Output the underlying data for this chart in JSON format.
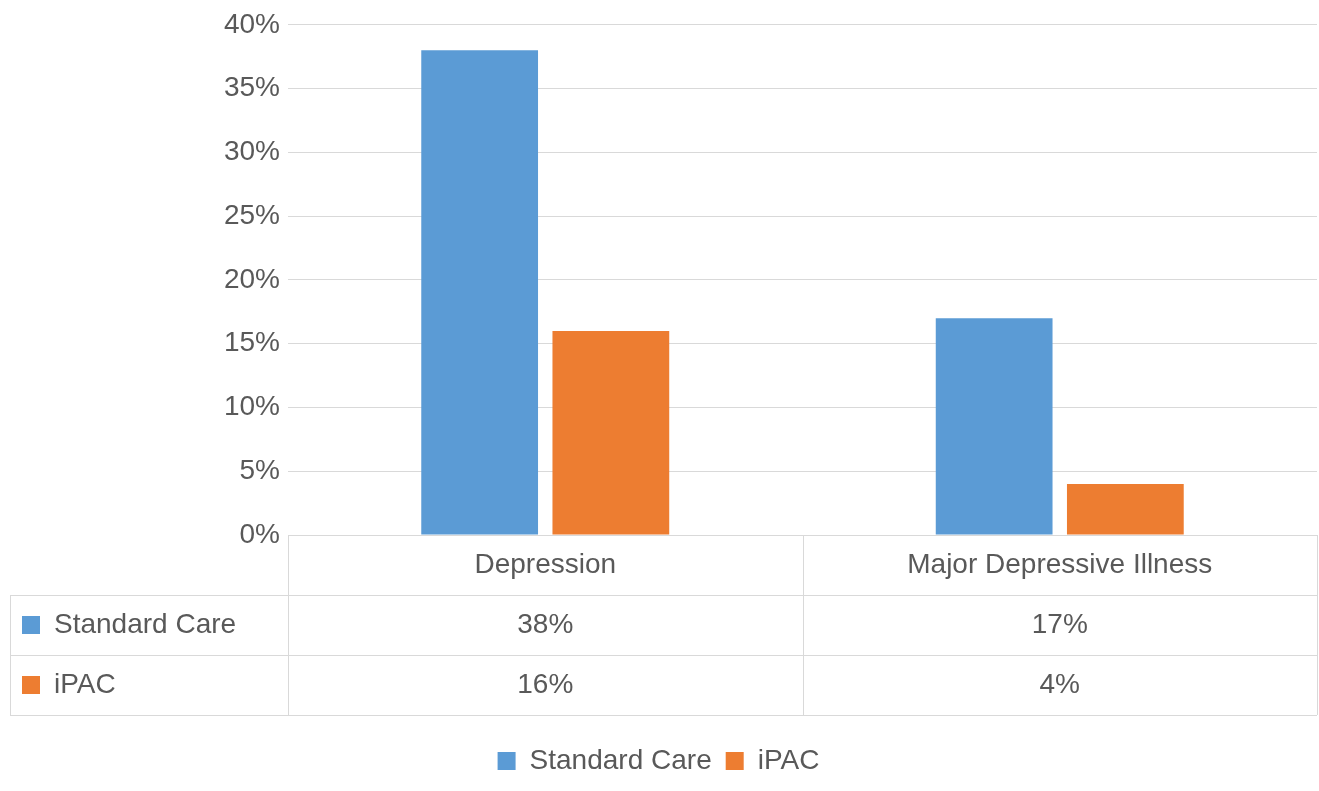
{
  "chart_data": {
    "type": "bar",
    "categories": [
      "Depression",
      "Major Depressive Illness"
    ],
    "series": [
      {
        "name": "Standard Care",
        "color": "#5b9bd5",
        "values": [
          38,
          17
        ],
        "value_labels": [
          "38%",
          "17%"
        ]
      },
      {
        "name": "iPAC",
        "color": "#ed7d31",
        "values": [
          16,
          4
        ],
        "value_labels": [
          "16%",
          "4%"
        ]
      }
    ],
    "ylim": [
      0,
      40
    ],
    "yticks": [
      {
        "value": 0,
        "label": "0%"
      },
      {
        "value": 5,
        "label": "5%"
      },
      {
        "value": 10,
        "label": "10%"
      },
      {
        "value": 15,
        "label": "15%"
      },
      {
        "value": 20,
        "label": "20%"
      },
      {
        "value": 25,
        "label": "25%"
      },
      {
        "value": 30,
        "label": "30%"
      },
      {
        "value": 35,
        "label": "35%"
      },
      {
        "value": 40,
        "label": "40%"
      }
    ],
    "grid": "y",
    "legend": "bottom"
  }
}
